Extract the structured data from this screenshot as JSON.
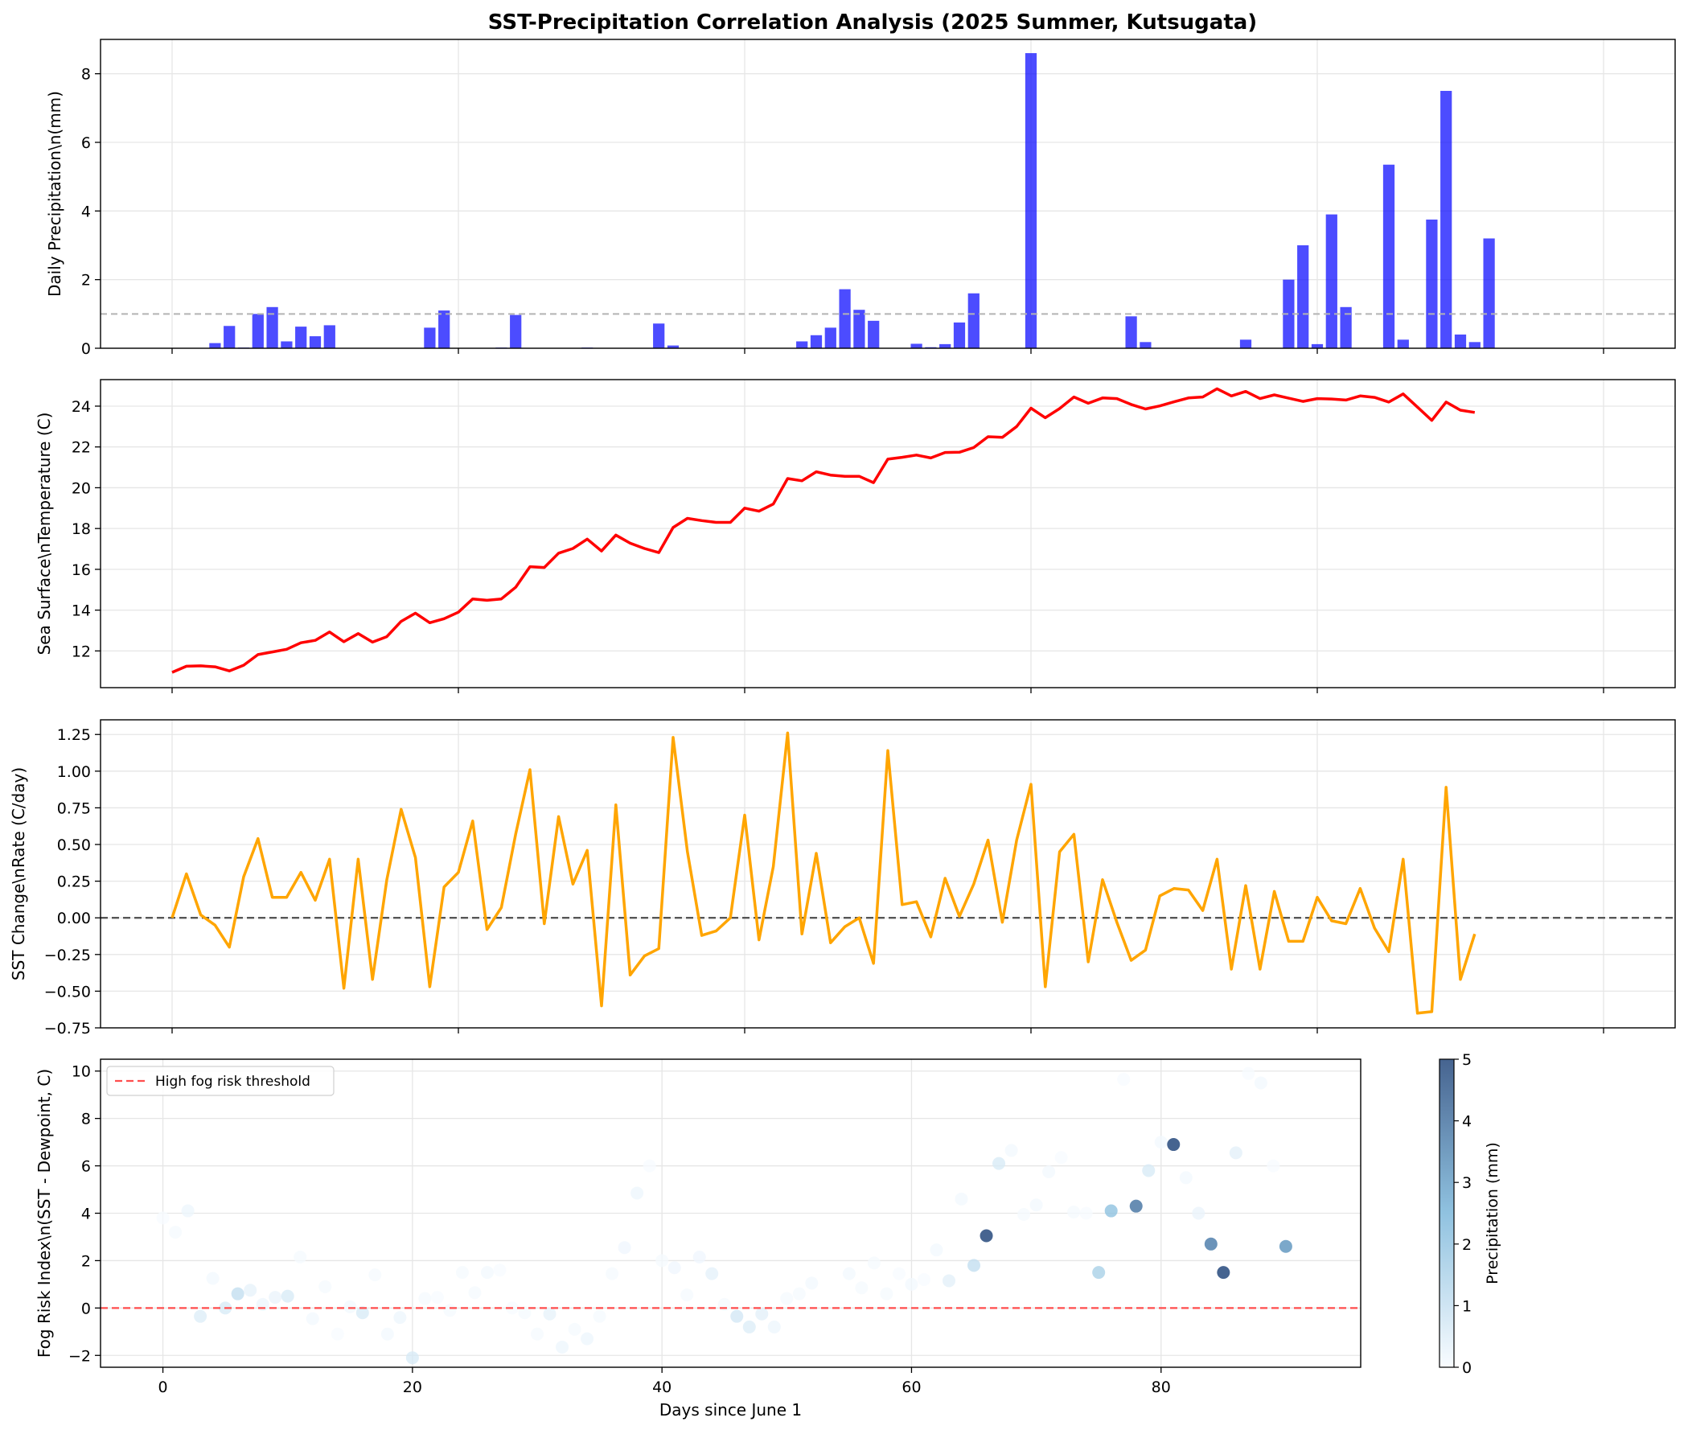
{
  "figure": {
    "title": "SST-Precipitation Correlation Analysis (2025 Summer, Kutsugata)",
    "colors": {
      "precip": "#0000ff",
      "sst": "#ff0000",
      "sst_change": "#ffa500",
      "threshold": "#ff4d4d",
      "zero_line": "#555555",
      "ref_line": "#b3b3b3",
      "cmap_low": "#f7fbff",
      "cmap_mid": "#6baed6",
      "cmap_high": "#08306b"
    }
  },
  "chart_data": [
    {
      "id": "precip",
      "type": "bar",
      "title": "",
      "ylabel": "Daily Precipitation\\n(mm)",
      "xlabel": "",
      "xlim": [
        -5,
        105
      ],
      "ylim": [
        0,
        9
      ],
      "yticks": [
        0,
        2,
        4,
        6,
        8
      ],
      "grid": true,
      "reference_line": 1.0,
      "x": [
        3,
        4,
        5,
        6,
        7,
        8,
        9,
        10,
        11,
        12,
        18,
        19,
        20,
        23,
        24,
        29,
        34,
        35,
        44,
        45,
        46,
        47,
        48,
        49,
        50,
        52,
        53,
        54,
        55,
        56,
        60,
        67,
        68,
        75,
        78,
        79,
        80,
        81,
        82,
        85,
        86,
        88,
        89,
        90,
        91,
        92,
        93,
        94,
        95,
        96,
        97,
        98,
        99,
        100,
        101,
        102,
        103
      ],
      "values": [
        0.15,
        0.65,
        0.02,
        1.0,
        1.2,
        0.2,
        0.63,
        0.35,
        0.67,
        0.0,
        0.6,
        1.1,
        0.0,
        0.02,
        0.97,
        0.02,
        0.72,
        0.08,
        0.2,
        0.38,
        0.6,
        1.72,
        1.12,
        0.8,
        0.0,
        0.13,
        0.03,
        0.12,
        0.75,
        1.6,
        8.6,
        0.93,
        0.18,
        0.25,
        2.0,
        3.0,
        0.12,
        3.9,
        1.2,
        5.35,
        0.25,
        3.75,
        7.5,
        0.4,
        0.18,
        3.2,
        0.0,
        0.0,
        0.0,
        0.0,
        0.0,
        0.0,
        0.0,
        0.0,
        0.0,
        0.0,
        0.0
      ]
    },
    {
      "id": "sst",
      "type": "line",
      "title": "",
      "ylabel": "Sea Surface\\nTemperature (C)",
      "xlabel": "",
      "xlim": [
        -5,
        105
      ],
      "ylim": [
        10.2,
        25.3
      ],
      "yticks": [
        12,
        14,
        16,
        18,
        20,
        22,
        24
      ],
      "grid": true,
      "x_start": 0,
      "values": [
        10.95,
        11.25,
        11.27,
        11.22,
        11.02,
        11.3,
        11.82,
        11.95,
        12.08,
        12.4,
        12.52,
        12.93,
        12.45,
        12.85,
        12.43,
        12.7,
        13.45,
        13.85,
        13.38,
        13.58,
        13.9,
        14.55,
        14.48,
        14.55,
        15.12,
        16.13,
        16.09,
        16.79,
        17.02,
        17.48,
        16.9,
        17.68,
        17.28,
        17.02,
        16.82,
        18.05,
        18.5,
        18.39,
        18.3,
        18.3,
        19.0,
        18.85,
        19.2,
        20.45,
        20.34,
        20.78,
        20.62,
        20.56,
        20.56,
        20.25,
        21.4,
        21.49,
        21.6,
        21.46,
        21.73,
        21.74,
        21.97,
        22.5,
        22.47,
        23.0,
        23.9,
        23.43,
        23.88,
        24.45,
        24.14,
        24.4,
        24.37,
        24.08,
        23.86,
        24.01,
        24.21,
        24.4,
        24.45,
        24.85,
        24.5,
        24.72,
        24.37,
        24.55,
        24.39,
        24.23,
        24.37,
        24.35,
        24.3,
        24.5,
        24.43,
        24.2,
        24.6,
        23.95,
        23.3,
        24.2,
        23.8,
        23.69
      ]
    },
    {
      "id": "sst_change",
      "type": "line",
      "title": "",
      "ylabel": "SST Change\\nRate (C/day)",
      "xlabel": "",
      "xlim": [
        -5,
        105
      ],
      "ylim": [
        -0.75,
        1.35
      ],
      "yticks": [
        -0.75,
        -0.5,
        -0.25,
        0.0,
        0.25,
        0.5,
        0.75,
        1.0,
        1.25
      ],
      "ytick_labels": [
        "−0.75",
        "−0.50",
        "−0.25",
        "0.00",
        "0.25",
        "0.50",
        "0.75",
        "1.00",
        "1.25"
      ],
      "grid": true,
      "reference_line": 0.0,
      "x_start": 0,
      "values": [
        0.0,
        0.3,
        0.02,
        -0.05,
        -0.2,
        0.28,
        0.54,
        0.14,
        0.14,
        0.31,
        0.12,
        0.4,
        -0.48,
        0.4,
        -0.42,
        0.26,
        0.74,
        0.41,
        -0.47,
        0.21,
        0.31,
        0.66,
        -0.08,
        0.07,
        0.57,
        1.01,
        -0.04,
        0.69,
        0.23,
        0.46,
        -0.6,
        0.77,
        -0.39,
        -0.26,
        -0.21,
        1.23,
        0.45,
        -0.12,
        -0.09,
        0.0,
        0.7,
        -0.15,
        0.35,
        1.26,
        -0.11,
        0.44,
        -0.17,
        -0.06,
        0.0,
        -0.31,
        1.14,
        0.09,
        0.11,
        -0.13,
        0.27,
        0.01,
        0.23,
        0.53,
        -0.03,
        0.53,
        0.91,
        -0.47,
        0.45,
        0.57,
        -0.3,
        0.26,
        -0.03,
        -0.29,
        -0.22,
        0.15,
        0.2,
        0.19,
        0.05,
        0.4,
        -0.35,
        0.22,
        -0.35,
        0.18,
        -0.16,
        -0.16,
        0.14,
        -0.02,
        -0.04,
        0.2,
        -0.07,
        -0.23,
        0.4,
        -0.65,
        -0.64,
        0.89,
        -0.42,
        -0.11
      ]
    },
    {
      "id": "fog",
      "type": "scatter",
      "title": "",
      "ylabel": "Fog Risk Index\\n(SST - Dewpoint, C)",
      "xlabel": "Days since June 1",
      "xlim": [
        -5,
        96
      ],
      "ylim": [
        -2.5,
        10.5
      ],
      "xticks": [
        0,
        20,
        40,
        60,
        80
      ],
      "yticks": [
        -2,
        0,
        2,
        4,
        6,
        8,
        10
      ],
      "ytick_labels": [
        "−2",
        "0",
        "2",
        "4",
        "6",
        "8",
        "10"
      ],
      "grid": true,
      "threshold": 0.0,
      "legend": {
        "label": "High fog risk threshold",
        "position": "upper-left"
      },
      "colorbar": {
        "label": "Precipitation (mm)",
        "min": 0,
        "max": 5,
        "ticks": [
          0,
          1,
          2,
          3,
          4,
          5
        ]
      },
      "points": [
        [
          0,
          3.8,
          0
        ],
        [
          1,
          3.2,
          0.05
        ],
        [
          2,
          4.1,
          0.2
        ],
        [
          3,
          -0.35,
          0.5
        ],
        [
          4,
          1.25,
          0.1
        ],
        [
          5,
          0.0,
          0.6
        ],
        [
          6,
          0.6,
          1.0
        ],
        [
          7,
          0.75,
          0.3
        ],
        [
          8,
          0.15,
          0.2
        ],
        [
          9,
          0.45,
          0.25
        ],
        [
          10,
          0.5,
          0.6
        ],
        [
          11,
          2.15,
          0.05
        ],
        [
          12,
          -0.45,
          0.1
        ],
        [
          13,
          0.9,
          0.05
        ],
        [
          14,
          -1.1,
          0.0
        ],
        [
          15,
          0.05,
          0.1
        ],
        [
          16,
          -0.2,
          0.6
        ],
        [
          17,
          1.4,
          0.05
        ],
        [
          18,
          -1.1,
          0.1
        ],
        [
          19,
          -0.4,
          0.2
        ],
        [
          20,
          -2.1,
          0.6
        ],
        [
          21,
          0.4,
          0.05
        ],
        [
          22,
          0.45,
          0.0
        ],
        [
          23,
          -0.1,
          0.05
        ],
        [
          24,
          1.5,
          0.05
        ],
        [
          25,
          0.65,
          0.05
        ],
        [
          26,
          1.5,
          0.1
        ],
        [
          27,
          1.6,
          0.0
        ],
        [
          28,
          0.0,
          0.0
        ],
        [
          29,
          -0.2,
          0.05
        ],
        [
          30,
          -1.1,
          0.05
        ],
        [
          31,
          -0.25,
          0.3
        ],
        [
          32,
          -1.65,
          0.2
        ],
        [
          33,
          -0.9,
          0.05
        ],
        [
          34,
          -1.3,
          0.2
        ],
        [
          35,
          -0.35,
          0.05
        ],
        [
          36,
          1.45,
          0.05
        ],
        [
          37,
          2.55,
          0.15
        ],
        [
          38,
          4.85,
          0.2
        ],
        [
          39,
          6.0,
          0.0
        ],
        [
          40,
          2.0,
          0.05
        ],
        [
          41,
          1.7,
          0.15
        ],
        [
          42,
          0.55,
          0.05
        ],
        [
          43,
          2.15,
          0.15
        ],
        [
          44,
          1.45,
          0.35
        ],
        [
          45,
          0.15,
          0.05
        ],
        [
          46,
          -0.35,
          0.7
        ],
        [
          47,
          -0.8,
          0.5
        ],
        [
          48,
          -0.25,
          0.4
        ],
        [
          49,
          -0.8,
          0.2
        ],
        [
          50,
          0.4,
          0.05
        ],
        [
          51,
          0.6,
          0.05
        ],
        [
          52,
          1.05,
          0.1
        ],
        [
          55,
          1.45,
          0.1
        ],
        [
          56,
          0.85,
          0.05
        ],
        [
          57,
          1.9,
          0.05
        ],
        [
          58,
          0.6,
          0.05
        ],
        [
          59,
          1.45,
          0.0
        ],
        [
          60,
          1.0,
          0.1
        ],
        [
          61,
          1.2,
          0.0
        ],
        [
          62,
          2.45,
          0.1
        ],
        [
          63,
          1.15,
          0.4
        ],
        [
          64,
          4.6,
          0.1
        ],
        [
          65,
          1.8,
          1.0
        ],
        [
          66,
          3.05,
          5.0
        ],
        [
          67,
          6.1,
          0.6
        ],
        [
          68,
          6.65,
          0.1
        ],
        [
          69,
          3.95,
          0.05
        ],
        [
          70,
          4.35,
          0.1
        ],
        [
          71,
          5.75,
          0.1
        ],
        [
          72,
          6.35,
          0.0
        ],
        [
          73,
          4.05,
          0.05
        ],
        [
          74,
          4.0,
          0.0
        ],
        [
          75,
          1.5,
          1.5
        ],
        [
          76,
          4.1,
          2.0
        ],
        [
          77,
          9.65,
          0.0
        ],
        [
          78,
          4.3,
          3.9
        ],
        [
          79,
          5.8,
          0.6
        ],
        [
          80,
          7.0,
          0.1
        ],
        [
          81,
          6.9,
          5.4
        ],
        [
          82,
          5.5,
          0.1
        ],
        [
          83,
          4.0,
          0.25
        ],
        [
          84,
          2.7,
          3.75
        ],
        [
          85,
          1.5,
          7.5
        ],
        [
          86,
          6.55,
          0.4
        ],
        [
          87,
          9.9,
          0.0
        ],
        [
          88,
          9.5,
          0.1
        ],
        [
          89,
          6.0,
          0.0
        ],
        [
          90,
          2.6,
          3.2
        ]
      ]
    }
  ]
}
